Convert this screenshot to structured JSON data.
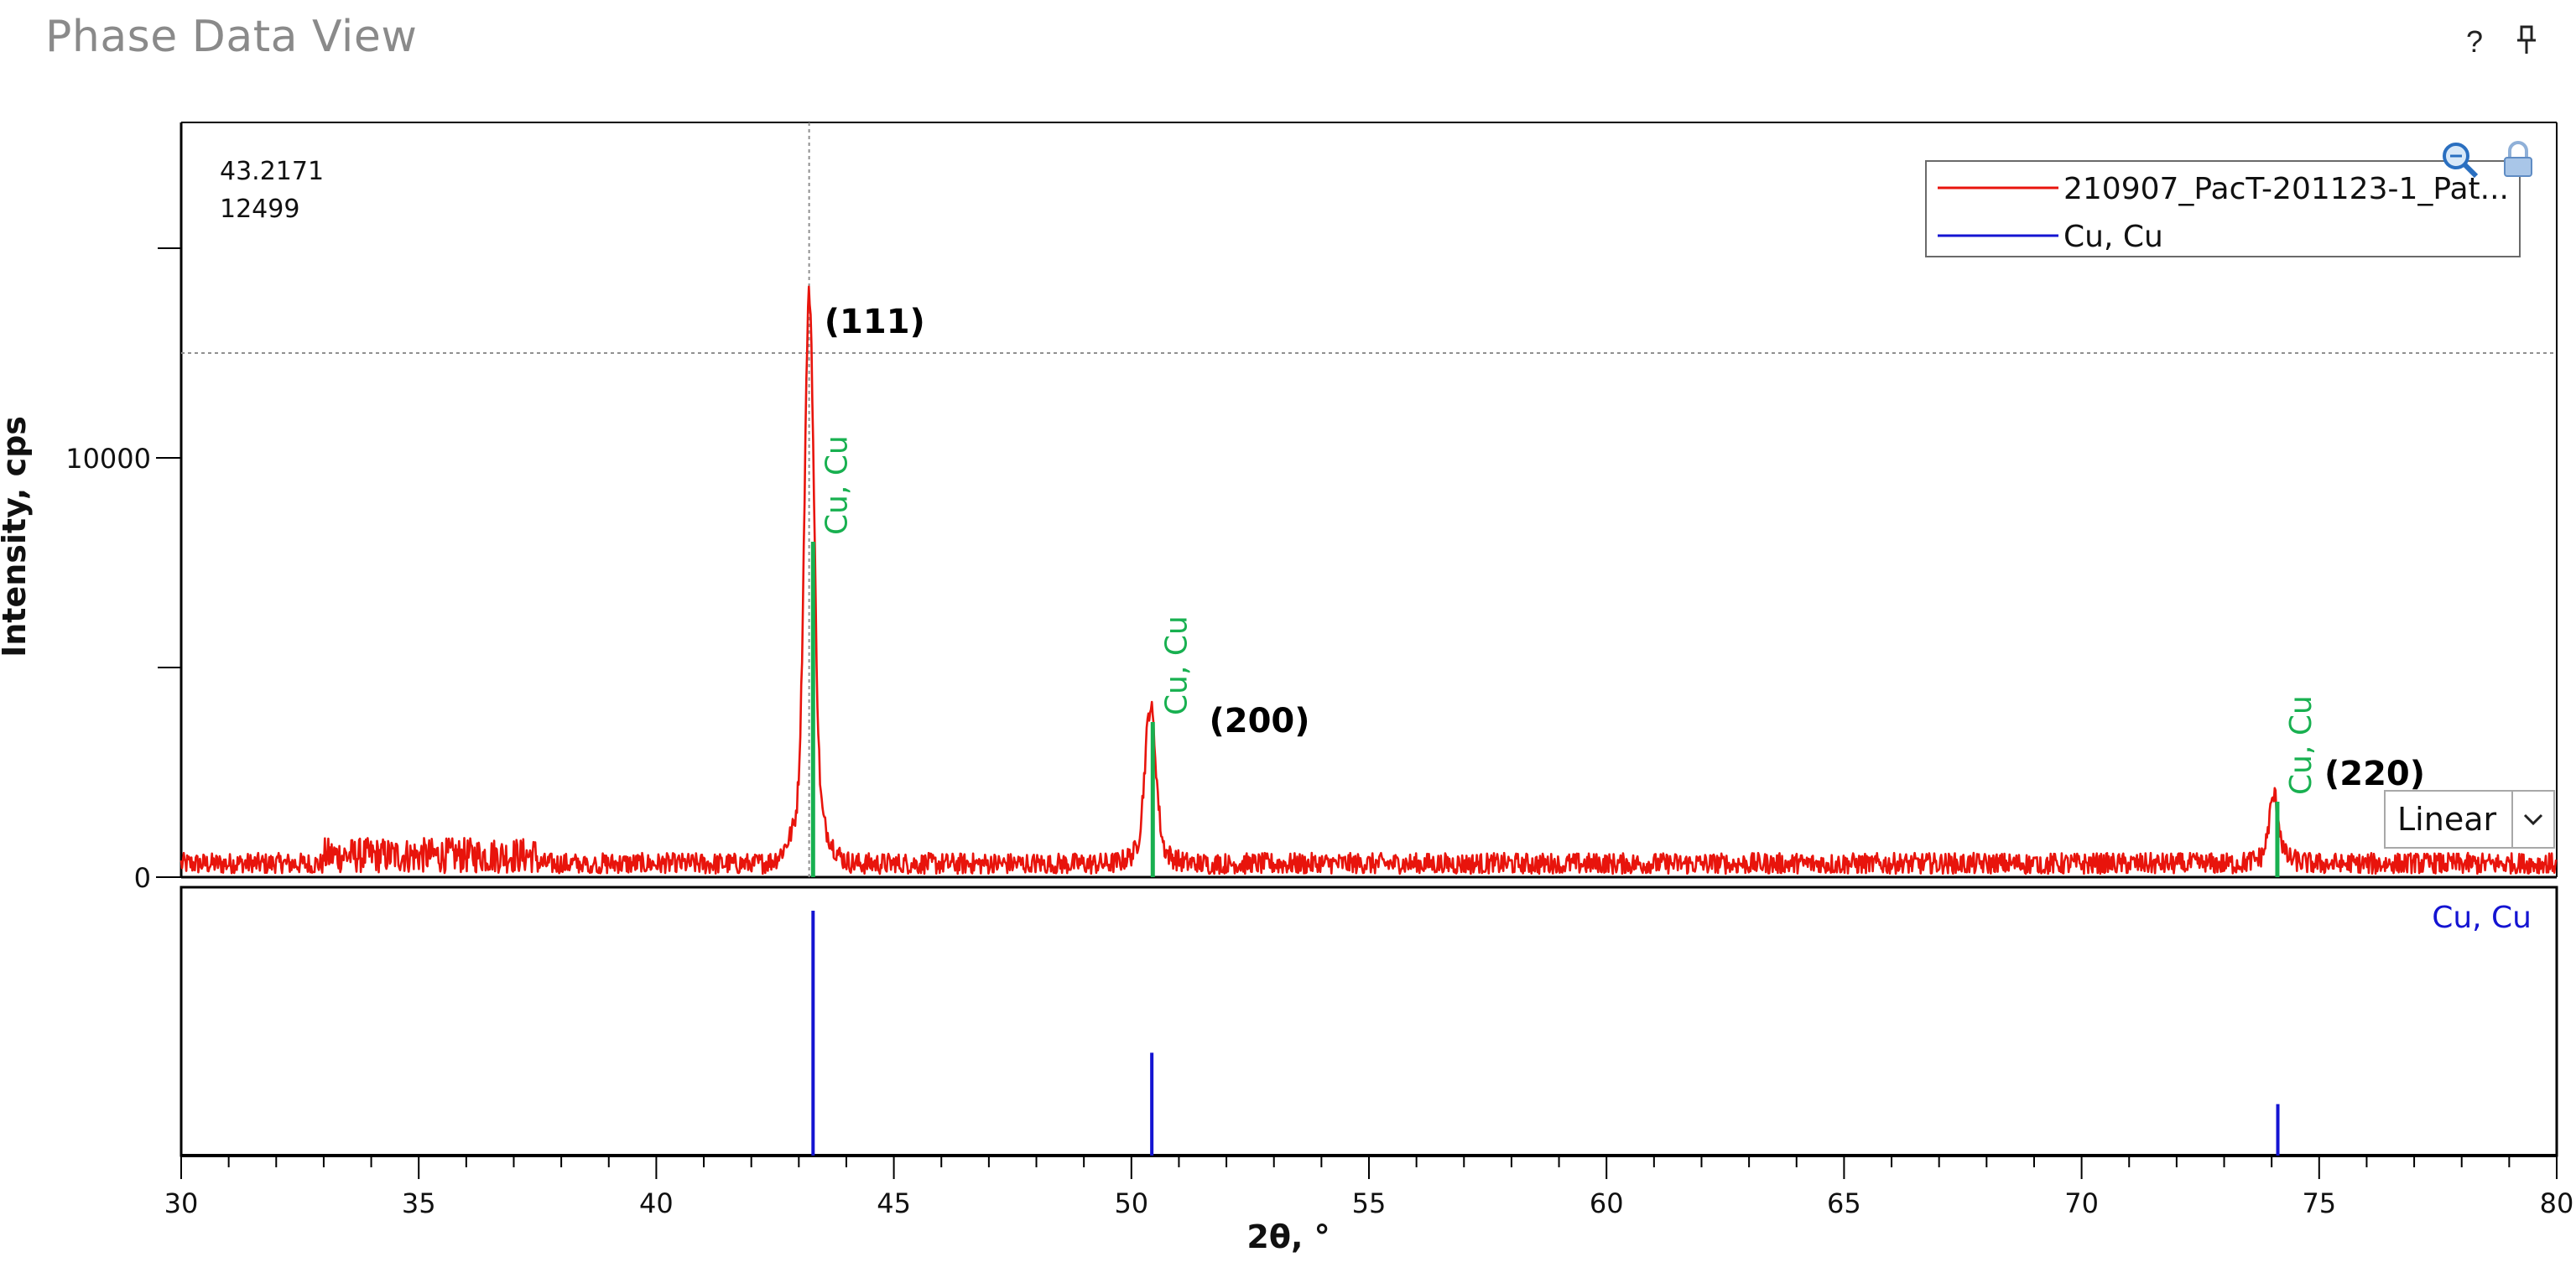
{
  "window": {
    "title": "Phase Data View",
    "help_label": "?",
    "pin_icon": "pin-icon"
  },
  "toolbar": {
    "zoom_icon": "zoom-icon",
    "lock_icon": "lock-icon"
  },
  "cursor_readout": {
    "x_value": "43.2171",
    "y_value": "12499"
  },
  "scale_select": {
    "selected": "Linear"
  },
  "legend": {
    "entries": [
      {
        "label": "210907_PacT-201123-1_Pat...",
        "color": "#e8140c"
      },
      {
        "label": "Cu, Cu",
        "color": "#1414d2"
      }
    ]
  },
  "stick_pane": {
    "label": "Cu, Cu"
  },
  "colors": {
    "pattern": "#e8140c",
    "phase_marker": "#18b050",
    "reference_stick": "#1414d2",
    "crosshair": "#909090"
  },
  "chart_data": {
    "type": "line",
    "xlabel": "2θ, °",
    "ylabel": "Intensity, cps",
    "xlim": [
      30,
      80
    ],
    "ylim": [
      0,
      18000
    ],
    "x_ticks": [
      "30",
      "35",
      "40",
      "45",
      "50",
      "55",
      "60",
      "65",
      "70",
      "75",
      "80"
    ],
    "y_ticks": [
      "0",
      "10000"
    ],
    "crosshair": {
      "x": 43.2171,
      "y": 12499
    },
    "series": [
      {
        "name": "210907_PacT-201123-1_Pat...",
        "peaks": [
          {
            "x": 43.22,
            "y": 12499
          },
          {
            "x": 50.4,
            "y": 3700
          },
          {
            "x": 74.05,
            "y": 1800
          }
        ],
        "background_cps": 400
      }
    ],
    "phase_markers": [
      {
        "x": 43.3,
        "y": 8000,
        "label": "Cu, Cu"
      },
      {
        "x": 50.45,
        "y": 3700,
        "label": "Cu, Cu"
      },
      {
        "x": 74.12,
        "y": 1800,
        "label": "Cu, Cu"
      }
    ],
    "annotations": [
      {
        "text": "(111)",
        "x": 43.22
      },
      {
        "text": "(200)",
        "x": 50.4
      },
      {
        "text": "(220)",
        "x": 74.05
      }
    ],
    "reference_pattern": {
      "name": "Cu, Cu",
      "sticks": [
        {
          "x": 43.3,
          "relative_intensity": 100
        },
        {
          "x": 50.43,
          "relative_intensity": 42
        },
        {
          "x": 74.13,
          "relative_intensity": 21
        }
      ]
    }
  }
}
